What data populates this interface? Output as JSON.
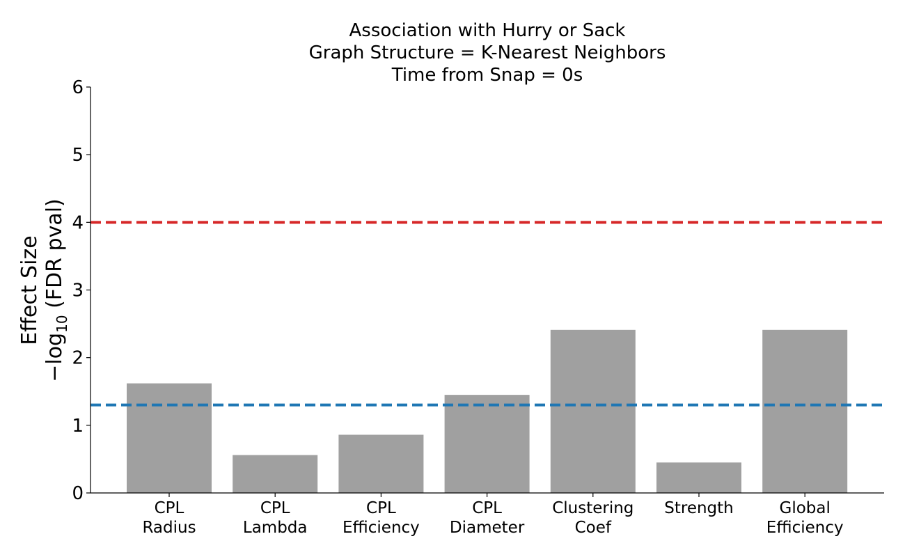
{
  "chart_data": {
    "type": "bar",
    "title_lines": [
      "Association with Hurry or Sack",
      "Graph Structure = K-Nearest Neighbors",
      "Time from Snap = 0s"
    ],
    "ylabel": "Effect Size",
    "ylabel2": "−log",
    "ylabel2_sub": "10",
    "ylabel2_rest": " (FDR pval)",
    "categories": [
      [
        "CPL",
        "Radius"
      ],
      [
        "CPL",
        "Lambda"
      ],
      [
        "CPL",
        "Efficiency"
      ],
      [
        "CPL",
        "Diameter"
      ],
      [
        "Clustering",
        "Coef"
      ],
      [
        "Strength"
      ],
      [
        "Global",
        "Efficiency"
      ]
    ],
    "values": [
      1.62,
      0.56,
      0.86,
      1.45,
      2.41,
      0.45,
      2.41
    ],
    "bar_color": "#a0a0a0",
    "ylim": [
      0,
      6
    ],
    "yticks": [
      "0",
      "1",
      "2",
      "3",
      "4",
      "5",
      "6"
    ],
    "reference_lines": [
      {
        "y": 4.0,
        "color": "#d62728",
        "style": "dashed"
      },
      {
        "y": 1.3,
        "color": "#1f77b4",
        "style": "dashed"
      }
    ],
    "grid": false
  }
}
